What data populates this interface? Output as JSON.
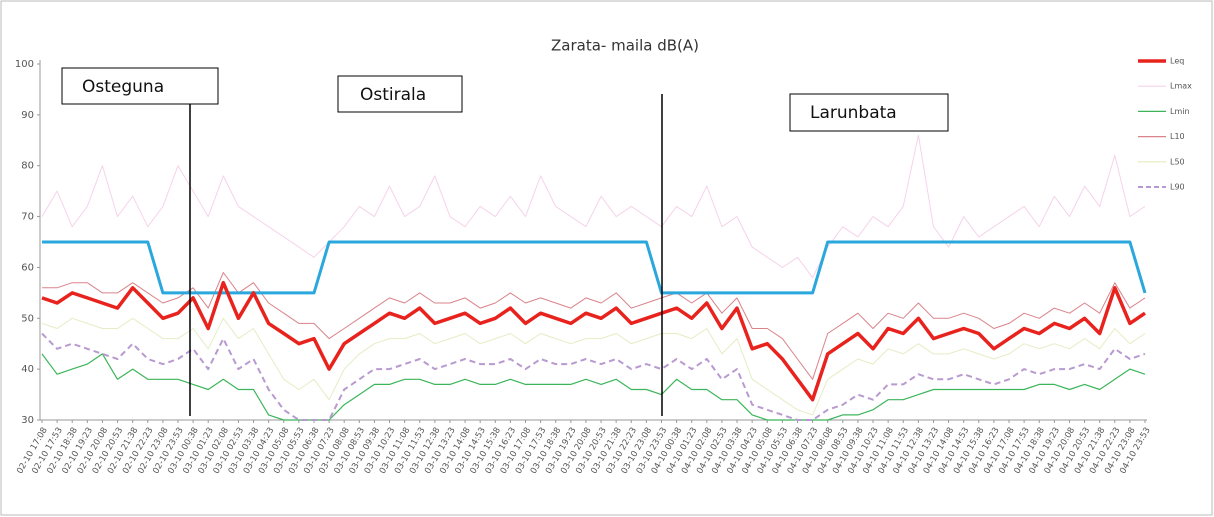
{
  "chart_data": {
    "type": "line",
    "title": "Zarata- maila dB(A)",
    "annotations": [
      "Osteguna",
      "Ostirala",
      "Larunbata"
    ],
    "categories": [
      "02-10 17:08",
      "02-10 17:53",
      "02-10 18:38",
      "02-10 19:23",
      "02-10 20:08",
      "02-10 20:53",
      "02-10 21:38",
      "02-10 22:23",
      "02-10 23:08",
      "02-10 23:53",
      "03-10 00:38",
      "03-10 01:23",
      "03-10 02:08",
      "03-10 02:53",
      "03-10 03:38",
      "03-10 04:23",
      "03-10 05:08",
      "03-10 05:53",
      "03-10 06:38",
      "03-10 07:23",
      "03-10 08:08",
      "03-10 08:53",
      "03-10 09:38",
      "03-10 10:23",
      "03-10 11:08",
      "03-10 11:53",
      "03-10 12:38",
      "03-10 13:23",
      "03-10 14:08",
      "03-10 14:53",
      "03-10 15:38",
      "03-10 16:23",
      "03-10 17:08",
      "03-10 17:53",
      "03-10 18:38",
      "03-10 19:23",
      "03-10 20:08",
      "03-10 20:53",
      "03-10 21:38",
      "03-10 22:23",
      "03-10 23:08",
      "03-10 23:53",
      "04-10 00:38",
      "04-10 01:23",
      "04-10 02:08",
      "04-10 02:53",
      "04-10 03:38",
      "04-10 04:23",
      "04-10 05:08",
      "04-10 05:53",
      "04-10 06:38",
      "04-10 07:23",
      "04-10 08:08",
      "04-10 08:53",
      "04-10 09:38",
      "04-10 10:23",
      "04-10 11:08",
      "04-10 11:53",
      "04-10 12:38",
      "04-10 13:23",
      "04-10 14:08",
      "04-10 14:53",
      "04-10 15:38",
      "04-10 16:23",
      "04-10 17:08",
      "04-10 17:53",
      "04-10 18:38",
      "04-10 19:23",
      "04-10 20:08",
      "04-10 20:53",
      "04-10 21:38",
      "04-10 22:23",
      "04-10 23:08",
      "04-10 23:53"
    ],
    "series": [
      {
        "name": "Leq",
        "color": "#e8231e",
        "values": [
          54,
          53,
          55,
          54,
          53,
          52,
          56,
          53,
          50,
          51,
          54,
          48,
          57,
          50,
          55,
          49,
          47,
          45,
          46,
          40,
          45,
          47,
          49,
          51,
          50,
          52,
          49,
          50,
          51,
          49,
          50,
          52,
          49,
          51,
          50,
          49,
          51,
          50,
          52,
          49,
          50,
          51,
          52,
          50,
          53,
          48,
          52,
          44,
          45,
          42,
          38,
          34,
          43,
          45,
          47,
          44,
          48,
          47,
          50,
          46,
          47,
          48,
          47,
          44,
          46,
          48,
          47,
          49,
          48,
          50,
          47,
          56,
          49,
          51
        ]
      },
      {
        "name": "Lmax",
        "color": "#f6d3ea",
        "values": [
          70,
          75,
          68,
          72,
          80,
          70,
          74,
          68,
          72,
          80,
          75,
          70,
          78,
          72,
          70,
          68,
          66,
          64,
          62,
          65,
          68,
          72,
          70,
          76,
          70,
          72,
          78,
          70,
          68,
          72,
          70,
          74,
          70,
          78,
          72,
          70,
          68,
          74,
          70,
          72,
          70,
          68,
          72,
          70,
          76,
          68,
          70,
          64,
          62,
          60,
          62,
          58,
          64,
          68,
          66,
          70,
          68,
          72,
          86,
          68,
          64,
          70,
          66,
          68,
          70,
          72,
          68,
          74,
          70,
          76,
          72,
          82,
          70,
          72
        ]
      },
      {
        "name": "Lmin",
        "color": "#3cb55a",
        "values": [
          43,
          39,
          40,
          41,
          43,
          38,
          40,
          38,
          38,
          38,
          37,
          36,
          38,
          36,
          36,
          31,
          30,
          30,
          30,
          30,
          33,
          35,
          37,
          37,
          38,
          38,
          37,
          37,
          38,
          37,
          37,
          38,
          37,
          37,
          37,
          37,
          38,
          37,
          38,
          36,
          36,
          35,
          38,
          36,
          36,
          34,
          34,
          31,
          30,
          30,
          30,
          30,
          30,
          31,
          31,
          32,
          34,
          34,
          35,
          36,
          36,
          36,
          36,
          36,
          36,
          36,
          37,
          37,
          36,
          37,
          36,
          38,
          40,
          39
        ]
      },
      {
        "name": "L10",
        "color": "#d9838a",
        "values": [
          56,
          56,
          57,
          57,
          55,
          55,
          57,
          55,
          53,
          54,
          56,
          52,
          59,
          55,
          57,
          53,
          51,
          49,
          49,
          46,
          48,
          50,
          52,
          54,
          53,
          55,
          53,
          53,
          54,
          52,
          53,
          55,
          53,
          54,
          53,
          52,
          54,
          53,
          55,
          52,
          53,
          54,
          55,
          53,
          55,
          51,
          54,
          48,
          48,
          46,
          42,
          38,
          47,
          49,
          51,
          48,
          51,
          50,
          53,
          50,
          50,
          51,
          50,
          48,
          49,
          51,
          50,
          52,
          51,
          53,
          51,
          57,
          52,
          54
        ]
      },
      {
        "name": "L50",
        "color": "#e4edc4",
        "values": [
          49,
          48,
          50,
          49,
          48,
          48,
          50,
          48,
          46,
          46,
          48,
          44,
          50,
          46,
          48,
          43,
          38,
          36,
          38,
          34,
          40,
          43,
          45,
          46,
          46,
          47,
          45,
          46,
          47,
          45,
          46,
          47,
          45,
          47,
          46,
          45,
          46,
          46,
          47,
          45,
          46,
          47,
          47,
          46,
          48,
          43,
          46,
          38,
          36,
          34,
          32,
          31,
          38,
          40,
          42,
          41,
          44,
          43,
          45,
          43,
          43,
          44,
          43,
          42,
          43,
          45,
          44,
          45,
          44,
          46,
          44,
          48,
          45,
          47
        ]
      },
      {
        "name": "L90",
        "color": "#b89ad0",
        "dashed": true,
        "values": [
          47,
          44,
          45,
          44,
          43,
          42,
          45,
          42,
          41,
          42,
          44,
          40,
          46,
          40,
          42,
          36,
          32,
          30,
          30,
          30,
          36,
          38,
          40,
          40,
          41,
          42,
          40,
          41,
          42,
          41,
          41,
          42,
          40,
          42,
          41,
          41,
          42,
          41,
          42,
          40,
          41,
          40,
          42,
          40,
          42,
          38,
          40,
          33,
          32,
          31,
          30,
          30,
          32,
          33,
          35,
          34,
          37,
          37,
          39,
          38,
          38,
          39,
          38,
          37,
          38,
          40,
          39,
          40,
          40,
          41,
          40,
          44,
          42,
          43
        ]
      },
      {
        "color": "#2aa7dc",
        "values": [
          65,
          65,
          65,
          65,
          65,
          65,
          65,
          65,
          55,
          55,
          55,
          55,
          55,
          55,
          55,
          55,
          55,
          55,
          55,
          65,
          65,
          65,
          65,
          65,
          65,
          65,
          65,
          65,
          65,
          65,
          65,
          65,
          65,
          65,
          65,
          65,
          65,
          65,
          65,
          65,
          65,
          55,
          55,
          55,
          55,
          55,
          55,
          55,
          55,
          55,
          55,
          55,
          65,
          65,
          65,
          65,
          65,
          65,
          65,
          65,
          65,
          65,
          65,
          65,
          65,
          65,
          65,
          65,
          65,
          65,
          65,
          65,
          65,
          55
        ]
      }
    ],
    "ylim": [
      30,
      100
    ],
    "yticks": [
      30,
      40,
      50,
      60,
      70,
      80,
      90,
      100
    ],
    "grid": false
  }
}
